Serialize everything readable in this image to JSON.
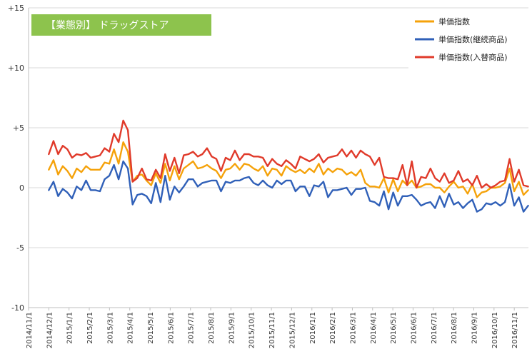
{
  "chart_data": {
    "type": "line",
    "title": "【業態別】 ドラッグストア",
    "xlabel": "",
    "ylabel": "",
    "ylim": [
      -10,
      15
    ],
    "yticks": [
      {
        "v": 15,
        "label": "+15"
      },
      {
        "v": 10,
        "label": "+10"
      },
      {
        "v": 5,
        "label": "+5"
      },
      {
        "v": 0,
        "label": "0"
      },
      {
        "v": -5,
        "label": "-5"
      },
      {
        "v": -10,
        "label": "-10"
      }
    ],
    "xticks": [
      "2014/11/1",
      "2014/12/1",
      "2015/1/1",
      "2015/2/1",
      "2015/3/1",
      "2015/4/1",
      "2015/5/1",
      "2015/6/1",
      "2015/7/1",
      "2015/8/1",
      "2015/9/1",
      "2015/10/1",
      "2015/11/1",
      "2015/12/1",
      "2016/1/1",
      "2016/2/1",
      "2016/3/1",
      "2016/4/1",
      "2016/5/1",
      "2016/6/1",
      "2016/7/1",
      "2016/8/1",
      "2016/9/1",
      "2016/10/1",
      "2016/11/1"
    ],
    "x_start": "2014/12/1",
    "x_interval": "weekly",
    "grid": "horizontal",
    "legend_position": "top-right",
    "series": [
      {
        "name": "単価指数",
        "color": "#f5a20a",
        "values": [
          1.5,
          2.3,
          1.1,
          1.8,
          1.4,
          0.8,
          1.6,
          1.3,
          1.8,
          1.5,
          1.5,
          1.5,
          2.1,
          2.0,
          3.2,
          2.0,
          3.8,
          3.0,
          0.5,
          1.0,
          1.1,
          0.6,
          0.2,
          1.2,
          0.4,
          2.0,
          0.6,
          1.8,
          0.7,
          1.6,
          1.9,
          2.2,
          1.6,
          1.7,
          1.9,
          1.6,
          1.4,
          0.8,
          1.5,
          1.6,
          2.0,
          1.5,
          2.0,
          1.9,
          1.6,
          1.4,
          1.8,
          1.0,
          1.6,
          1.5,
          1.0,
          1.8,
          1.5,
          1.3,
          1.5,
          1.2,
          1.6,
          1.3,
          2.0,
          1.1,
          1.6,
          1.3,
          1.6,
          1.5,
          1.1,
          1.3,
          1.0,
          1.5,
          0.4,
          0.1,
          0.1,
          0.0,
          0.8,
          -0.4,
          0.7,
          -0.3,
          0.6,
          0.2,
          0.6,
          0.0,
          0.1,
          0.3,
          0.3,
          0.0,
          0.0,
          -0.4,
          0.1,
          0.5,
          0.0,
          0.1,
          -0.5,
          0.3,
          -0.8,
          -0.4,
          -0.3,
          0.0,
          0.0,
          0.1,
          0.4,
          1.6,
          -0.3,
          0.5,
          -0.6,
          -0.2
        ]
      },
      {
        "name": "単価指数(継続商品)",
        "color": "#3060b8",
        "values": [
          -0.2,
          0.5,
          -0.7,
          -0.1,
          -0.4,
          -0.9,
          0.1,
          -0.2,
          0.6,
          -0.2,
          -0.2,
          -0.3,
          0.7,
          1.0,
          1.9,
          0.7,
          2.2,
          1.6,
          -1.4,
          -0.6,
          -0.5,
          -0.7,
          -1.3,
          0.4,
          -1.2,
          1.0,
          -1.0,
          0.1,
          -0.4,
          0.1,
          0.7,
          0.7,
          0.1,
          0.4,
          0.5,
          0.6,
          0.6,
          -0.3,
          0.5,
          0.4,
          0.6,
          0.6,
          0.8,
          0.9,
          0.4,
          0.2,
          0.6,
          0.2,
          0.0,
          0.6,
          0.3,
          0.6,
          0.6,
          -0.3,
          0.1,
          0.1,
          -0.7,
          0.2,
          0.1,
          0.5,
          -0.8,
          -0.2,
          -0.2,
          -0.1,
          0.0,
          -0.6,
          -0.1,
          -0.1,
          0.0,
          -1.1,
          -1.2,
          -1.5,
          -0.3,
          -1.8,
          -0.4,
          -1.5,
          -0.7,
          -0.7,
          -0.6,
          -1.0,
          -1.5,
          -1.3,
          -1.2,
          -1.7,
          -0.7,
          -1.6,
          -0.5,
          -1.4,
          -1.2,
          -1.7,
          -1.3,
          -1.0,
          -2.0,
          -1.8,
          -1.3,
          -1.4,
          -1.2,
          -1.5,
          -1.2,
          0.3,
          -1.5,
          -0.8,
          -2.0,
          -1.5
        ]
      },
      {
        "name": "単価指数(入替商品)",
        "color": "#e03a2a",
        "values": [
          2.8,
          3.9,
          2.8,
          3.5,
          3.2,
          2.5,
          2.8,
          2.7,
          2.9,
          2.5,
          2.6,
          2.7,
          3.3,
          3.0,
          4.5,
          3.8,
          5.6,
          4.8,
          0.5,
          0.8,
          1.6,
          0.7,
          0.6,
          1.5,
          0.8,
          2.8,
          1.4,
          2.5,
          1.2,
          2.7,
          2.8,
          3.0,
          2.6,
          2.8,
          3.3,
          2.6,
          2.4,
          1.4,
          2.5,
          2.3,
          3.1,
          2.3,
          2.8,
          2.8,
          2.6,
          2.6,
          2.5,
          1.8,
          2.4,
          2.0,
          1.8,
          2.3,
          2.0,
          1.6,
          2.6,
          2.4,
          2.2,
          2.4,
          2.8,
          2.1,
          2.5,
          2.6,
          2.7,
          3.2,
          2.6,
          3.1,
          2.5,
          3.1,
          2.8,
          2.6,
          1.9,
          2.5,
          0.9,
          0.8,
          0.8,
          0.7,
          1.9,
          0.2,
          2.2,
          0.0,
          0.9,
          0.8,
          1.6,
          0.8,
          0.5,
          1.2,
          0.4,
          0.6,
          1.4,
          0.5,
          0.7,
          0.2,
          1.0,
          0.0,
          0.3,
          0.0,
          0.2,
          0.5,
          0.6,
          2.4,
          0.5,
          1.5,
          0.2,
          0.1
        ]
      }
    ]
  }
}
